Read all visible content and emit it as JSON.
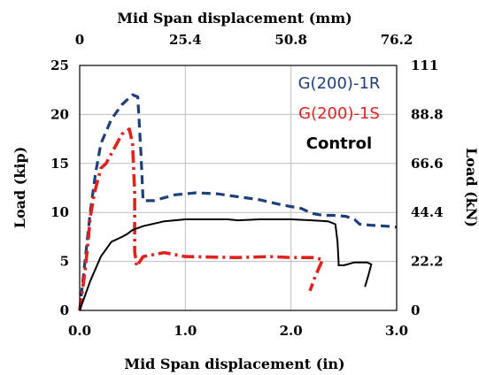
{
  "chart_data": {
    "type": "line",
    "xlabel_bottom": "Mid Span displacement (in)",
    "xlabel_top": "Mid Span displacement (mm)",
    "ylabel_left": "Load (kip)",
    "ylabel_right": "Load (kN)",
    "xlim": [
      0,
      3.0
    ],
    "ylim": [
      0,
      25
    ],
    "x_ticks": [
      "0.0",
      "1.0",
      "2.0",
      "3.0"
    ],
    "x_tick_values": [
      0,
      1,
      2,
      3
    ],
    "x_top_ticks": [
      "0",
      "25.4",
      "50.8",
      "76.2"
    ],
    "x_top_tick_values": [
      0,
      1,
      2,
      3
    ],
    "y_ticks": [
      "0",
      "5",
      "10",
      "15",
      "20",
      "25"
    ],
    "y_tick_values": [
      0,
      5,
      10,
      15,
      20,
      25
    ],
    "y_right_ticks": [
      "0",
      "22.2",
      "44.4",
      "66.6",
      "88.8",
      "111"
    ],
    "y_right_tick_values": [
      0,
      5,
      10,
      15,
      20,
      25
    ],
    "grid": true,
    "legend_position": "top-right",
    "series": [
      {
        "name": "G(200)-1R",
        "color": "#1f3e7c",
        "dash": "dashed",
        "points": [
          [
            0,
            0
          ],
          [
            0.05,
            5
          ],
          [
            0.1,
            10
          ],
          [
            0.15,
            14
          ],
          [
            0.2,
            17
          ],
          [
            0.3,
            19.5
          ],
          [
            0.4,
            21
          ],
          [
            0.5,
            22
          ],
          [
            0.55,
            21.8
          ],
          [
            0.58,
            16
          ],
          [
            0.6,
            11.2
          ],
          [
            0.7,
            11.2
          ],
          [
            0.9,
            11.8
          ],
          [
            1.1,
            12
          ],
          [
            1.3,
            11.9
          ],
          [
            1.5,
            11.6
          ],
          [
            1.7,
            11.3
          ],
          [
            1.9,
            10.8
          ],
          [
            2.1,
            10.4
          ],
          [
            2.2,
            9.9
          ],
          [
            2.3,
            9.7
          ],
          [
            2.4,
            9.7
          ],
          [
            2.52,
            9.6
          ],
          [
            2.6,
            9.3
          ],
          [
            2.65,
            8.8
          ],
          [
            2.75,
            8.7
          ],
          [
            2.9,
            8.6
          ],
          [
            3.0,
            8.5
          ]
        ]
      },
      {
        "name": "G(200)-1S",
        "color": "#e2211c",
        "dash": "dash-dot",
        "points": [
          [
            0,
            0
          ],
          [
            0.05,
            4
          ],
          [
            0.08,
            7
          ],
          [
            0.1,
            9.5
          ],
          [
            0.14,
            12
          ],
          [
            0.2,
            14.5
          ],
          [
            0.25,
            15
          ],
          [
            0.3,
            16
          ],
          [
            0.35,
            17
          ],
          [
            0.4,
            18
          ],
          [
            0.47,
            18.5
          ],
          [
            0.5,
            17
          ],
          [
            0.52,
            12
          ],
          [
            0.52,
            6
          ],
          [
            0.54,
            4.5
          ],
          [
            0.6,
            5.5
          ],
          [
            0.8,
            5.9
          ],
          [
            1.0,
            5.5
          ],
          [
            1.5,
            5.4
          ],
          [
            1.8,
            5.5
          ],
          [
            2.0,
            5.4
          ],
          [
            2.2,
            5.4
          ],
          [
            2.3,
            5.2
          ],
          [
            2.23,
            3.5
          ],
          [
            2.18,
            2
          ]
        ]
      },
      {
        "name": "Control",
        "color": "#000000",
        "dash": "solid",
        "points": [
          [
            0,
            0
          ],
          [
            0.1,
            3
          ],
          [
            0.2,
            5.5
          ],
          [
            0.3,
            7
          ],
          [
            0.4,
            7.5
          ],
          [
            0.45,
            7.8
          ],
          [
            0.5,
            8.2
          ],
          [
            0.6,
            8.6
          ],
          [
            0.8,
            9.1
          ],
          [
            1.0,
            9.3
          ],
          [
            1.2,
            9.3
          ],
          [
            1.4,
            9.3
          ],
          [
            1.5,
            9.2
          ],
          [
            1.7,
            9.3
          ],
          [
            2.0,
            9.3
          ],
          [
            2.2,
            9.2
          ],
          [
            2.35,
            9.1
          ],
          [
            2.42,
            8.8
          ],
          [
            2.44,
            7
          ],
          [
            2.45,
            5
          ],
          [
            2.45,
            4.6
          ],
          [
            2.5,
            4.6
          ],
          [
            2.6,
            4.9
          ],
          [
            2.72,
            4.9
          ],
          [
            2.76,
            4.7
          ],
          [
            2.73,
            3.5
          ],
          [
            2.7,
            2.4
          ]
        ]
      }
    ]
  }
}
